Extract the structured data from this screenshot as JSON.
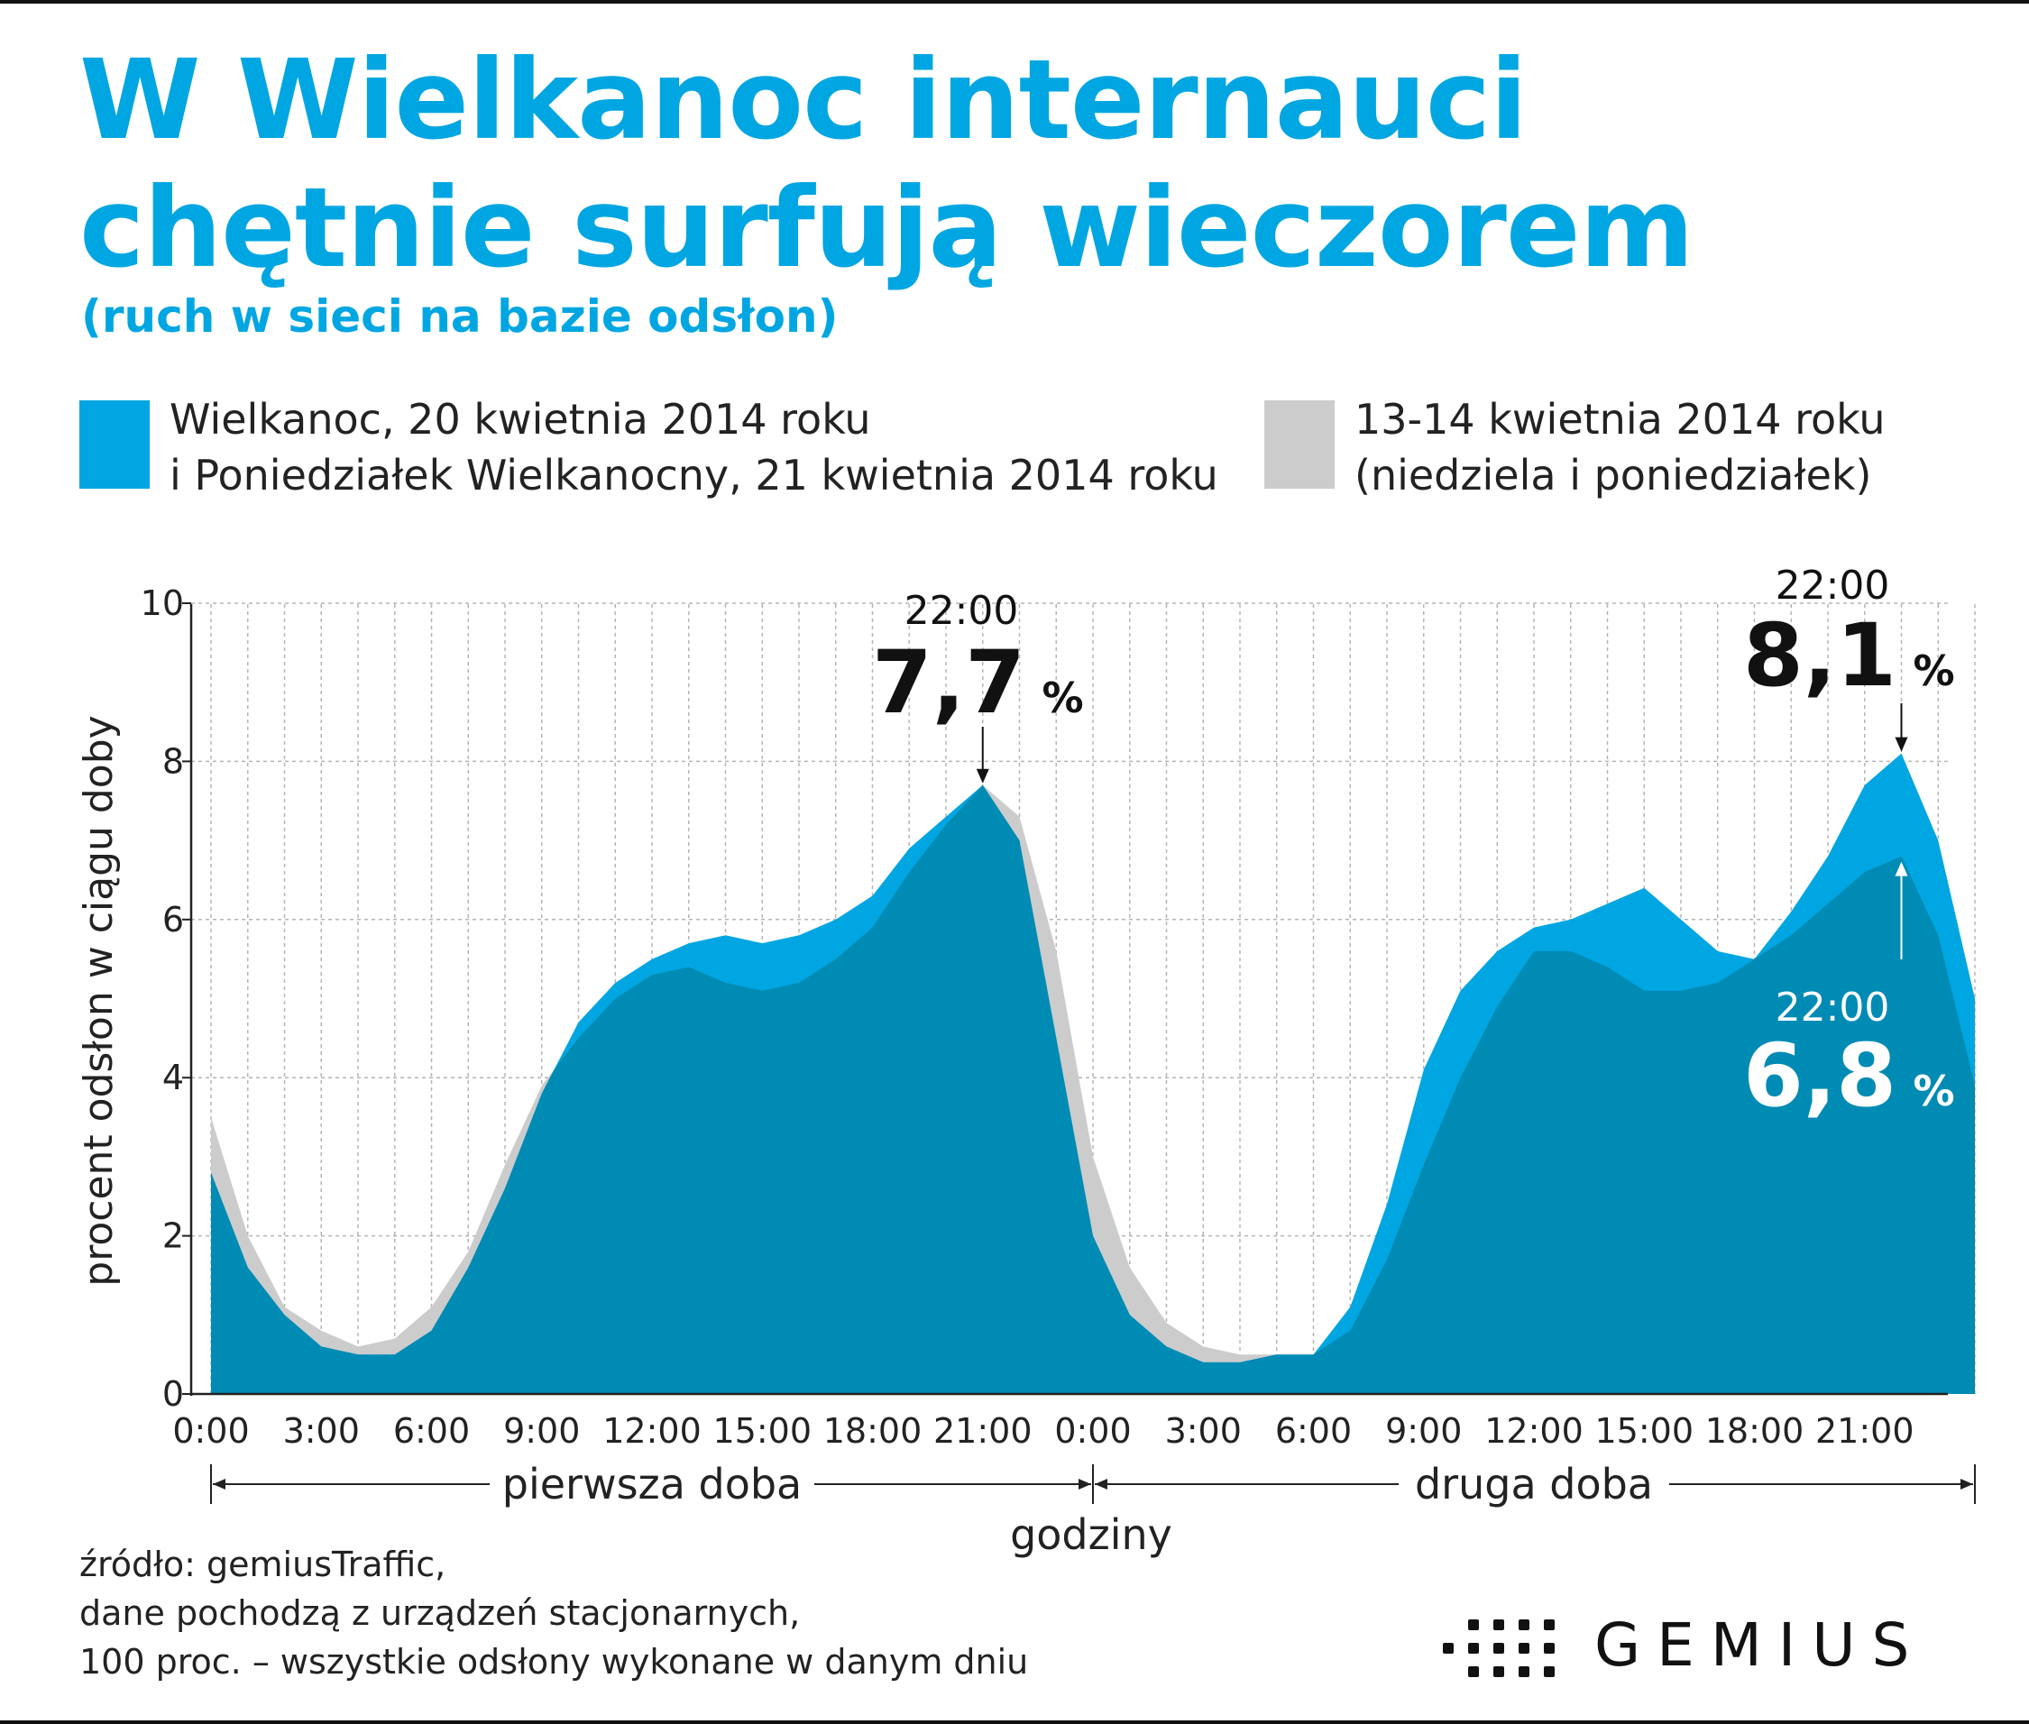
{
  "header": {
    "title_line1": "W Wielkanoc internauci",
    "title_line2": "chętnie surfują wieczorem",
    "subtitle": "(ruch w sieci na bazie odsłon)"
  },
  "legend": {
    "easter_line1": "Wielkanoc, 20 kwietnia 2014 roku",
    "easter_line2": "i Poniedziałek Wielkanocny, 21 kwietnia 2014 roku",
    "ref_line1": "13-14 kwietnia 2014 roku",
    "ref_line2": "(niedziela i poniedziałek)"
  },
  "colors": {
    "easter": "#00a6e1",
    "reference": "#cccccc",
    "overlap": "#008bb4",
    "title": "#00a6e1"
  },
  "chart_data": {
    "type": "area",
    "ylabel": "procent odsłon w ciągu doby",
    "xlabel": "godziny",
    "ylim": [
      0,
      10
    ],
    "y_ticks": [
      0,
      2,
      4,
      6,
      8,
      10
    ],
    "x_tick_labels": [
      "0:00",
      "3:00",
      "6:00",
      "9:00",
      "12:00",
      "15:00",
      "18:00",
      "21:00",
      "0:00",
      "3:00",
      "6:00",
      "9:00",
      "12:00",
      "15:00",
      "18:00",
      "21:00"
    ],
    "day_labels": [
      "pierwsza doba",
      "druga doba"
    ],
    "grid": true,
    "series": [
      {
        "name": "Wielkanoc, 20 kwietnia 2014 roku i Poniedziałek Wielkanocny, 21 kwietnia 2014 roku",
        "values": [
          2.8,
          1.6,
          1.0,
          0.6,
          0.5,
          0.5,
          0.8,
          1.6,
          2.6,
          3.8,
          4.7,
          5.2,
          5.5,
          5.7,
          5.8,
          5.7,
          5.8,
          6.0,
          6.3,
          6.9,
          7.3,
          7.7,
          7.0,
          4.5,
          2.0,
          1.0,
          0.6,
          0.4,
          0.4,
          0.5,
          0.5,
          1.1,
          2.4,
          4.1,
          5.1,
          5.6,
          5.9,
          6.0,
          6.2,
          6.4,
          6.0,
          5.6,
          5.5,
          6.1,
          6.8,
          7.7,
          8.1,
          7.0,
          5.0
        ]
      },
      {
        "name": "13-14 kwietnia 2014 roku (niedziela i poniedziałek)",
        "values": [
          3.5,
          2.0,
          1.1,
          0.8,
          0.6,
          0.7,
          1.1,
          1.8,
          2.9,
          3.9,
          4.5,
          5.0,
          5.3,
          5.4,
          5.2,
          5.1,
          5.2,
          5.5,
          5.9,
          6.6,
          7.2,
          7.7,
          7.3,
          5.6,
          3.0,
          1.6,
          0.9,
          0.6,
          0.5,
          0.5,
          0.5,
          0.8,
          1.7,
          2.9,
          4.0,
          4.9,
          5.6,
          5.6,
          5.4,
          5.1,
          5.1,
          5.2,
          5.5,
          5.8,
          6.2,
          6.6,
          6.8,
          5.8,
          3.9
        ]
      }
    ],
    "annotations": [
      {
        "time": "22:00",
        "value": "7,7",
        "unit": "%"
      },
      {
        "time": "22:00",
        "value": "8,1",
        "unit": "%"
      },
      {
        "time": "22:00",
        "value": "6,8",
        "unit": "%"
      }
    ]
  },
  "footer": {
    "line1": "źródło: gemiusTraffic,",
    "line2": "dane pochodzą z urządzeń stacjonarnych,",
    "line3": "100 proc. – wszystkie odsłony wykonane w danym dniu"
  },
  "brand": {
    "logo_text": "GEMIUS",
    "logo_icon": "gemius-dots-icon"
  }
}
